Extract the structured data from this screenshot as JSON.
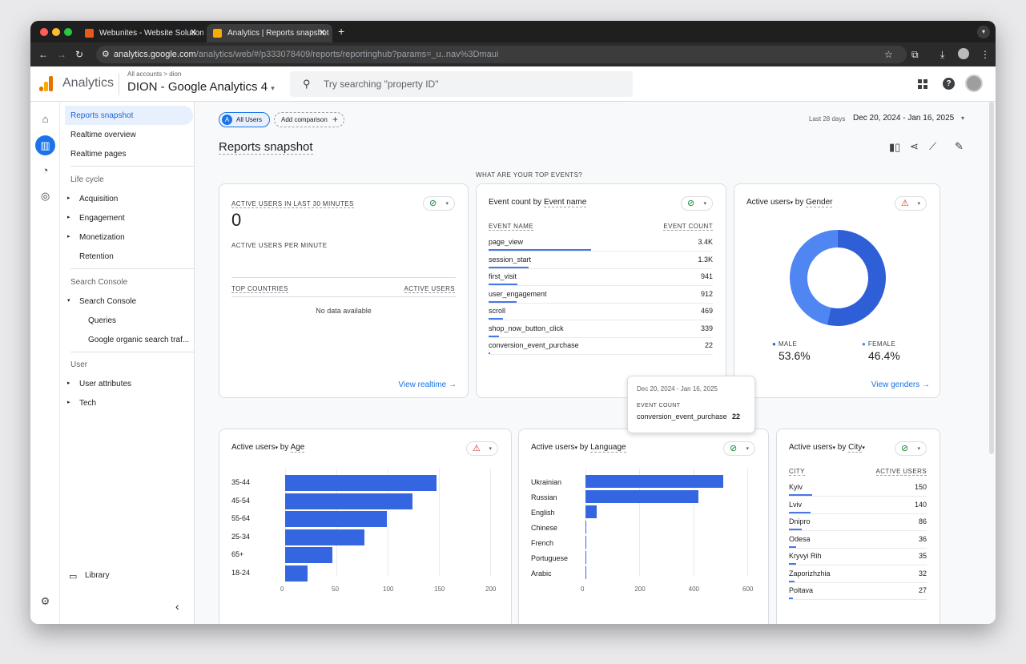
{
  "browser": {
    "tabs": [
      {
        "title": "Webunites - Website Solution"
      },
      {
        "title": "Analytics | Reports snapshot"
      }
    ],
    "url_host": "analytics.google.com",
    "url_path": "/analytics/web/#/p333078409/reports/reportinghub?params=_u..nav%3Dmaui"
  },
  "header": {
    "app_name": "Analytics",
    "breadcrumb": "All accounts > dion",
    "property": "DION - Google Analytics 4",
    "search_placeholder": "Try searching \"property ID\""
  },
  "nav": {
    "top_items": [
      "Reports snapshot",
      "Realtime overview",
      "Realtime pages"
    ],
    "lifecycle": {
      "title": "Life cycle",
      "items": [
        "Acquisition",
        "Engagement",
        "Monetization",
        "Retention"
      ]
    },
    "search_console": {
      "title": "Search Console",
      "group": "Search Console",
      "items": [
        "Queries",
        "Google organic search traf..."
      ]
    },
    "user": {
      "title": "User",
      "items": [
        "User attributes",
        "Tech"
      ]
    },
    "library": "Library"
  },
  "toolbar": {
    "segment": "All Users",
    "segment_letter": "A",
    "add_comparison": "Add comparison",
    "date_label": "Last 28 days",
    "date_range": "Dec 20, 2024 - Jan 16, 2025"
  },
  "page_title": "Reports snapshot",
  "section_heading": "WHAT ARE YOUR TOP EVENTS?",
  "realtime_card": {
    "title": "ACTIVE USERS IN LAST 30 MINUTES",
    "value": "0",
    "per_minute": "ACTIVE USERS PER MINUTE",
    "col_country": "TOP COUNTRIES",
    "col_users": "ACTIVE USERS",
    "empty": "No data available",
    "link": "View realtime"
  },
  "events_card": {
    "title_prefix": "Event count by ",
    "title_dim": "Event name",
    "col_name": "EVENT NAME",
    "col_count": "EVENT COUNT",
    "rows": [
      {
        "name": "page_view",
        "count": "3.4K",
        "share": 1.0
      },
      {
        "name": "session_start",
        "count": "1.3K",
        "share": 0.39
      },
      {
        "name": "first_visit",
        "count": "941",
        "share": 0.28
      },
      {
        "name": "user_engagement",
        "count": "912",
        "share": 0.27
      },
      {
        "name": "scroll",
        "count": "469",
        "share": 0.14
      },
      {
        "name": "shop_now_button_click",
        "count": "339",
        "share": 0.1
      },
      {
        "name": "conversion_event_purchase",
        "count": "22",
        "share": 0.01
      }
    ],
    "tooltip": {
      "date": "Dec 20, 2024 - Jan 16, 2025",
      "label": "EVENT COUNT",
      "name": "conversion_event_purchase",
      "value": "22"
    }
  },
  "gender_card": {
    "title_metric": "Active users",
    "title_by": " by ",
    "title_dim": "Gender",
    "male_label": "MALE",
    "male_value": "53.6%",
    "female_label": "FEMALE",
    "female_value": "46.4%",
    "male_share": 0.536,
    "link": "View genders",
    "colors": {
      "male": "#2f5fd6",
      "female": "#4f86f2"
    }
  },
  "age_card": {
    "title_metric": "Active users",
    "title_by": " by ",
    "title_dim": "Age",
    "categories": [
      "35-44",
      "45-54",
      "55-64",
      "25-34",
      "65+",
      "18-24"
    ],
    "values": [
      148,
      124,
      99,
      77,
      46,
      22
    ],
    "ticks": [
      "0",
      "50",
      "100",
      "150",
      "200"
    ],
    "max": 200
  },
  "language_card": {
    "title_metric": "Active users",
    "title_by": " by ",
    "title_dim": "Language",
    "categories": [
      "Ukrainian",
      "Russian",
      "English",
      "Chinese",
      "French",
      "Portuguese",
      "Arabic"
    ],
    "values": [
      510,
      420,
      42,
      2,
      2,
      2,
      2
    ],
    "ticks": [
      "0",
      "200",
      "400",
      "600"
    ],
    "max": 600
  },
  "city_card": {
    "title_metric": "Active users",
    "title_by": " by ",
    "title_dim": "City",
    "col_city": "CITY",
    "col_users": "ACTIVE USERS",
    "rows": [
      {
        "name": "Kyiv",
        "value": "150",
        "share": 0.16
      },
      {
        "name": "Lviv",
        "value": "140",
        "share": 0.15
      },
      {
        "name": "Dnipro",
        "value": "86",
        "share": 0.09
      },
      {
        "name": "Odesa",
        "value": "36",
        "share": 0.05
      },
      {
        "name": "Kryvyi Rih",
        "value": "35",
        "share": 0.05
      },
      {
        "name": "Zaporizhzhia",
        "value": "32",
        "share": 0.04
      },
      {
        "name": "Poltava",
        "value": "27",
        "share": 0.03
      }
    ]
  }
}
